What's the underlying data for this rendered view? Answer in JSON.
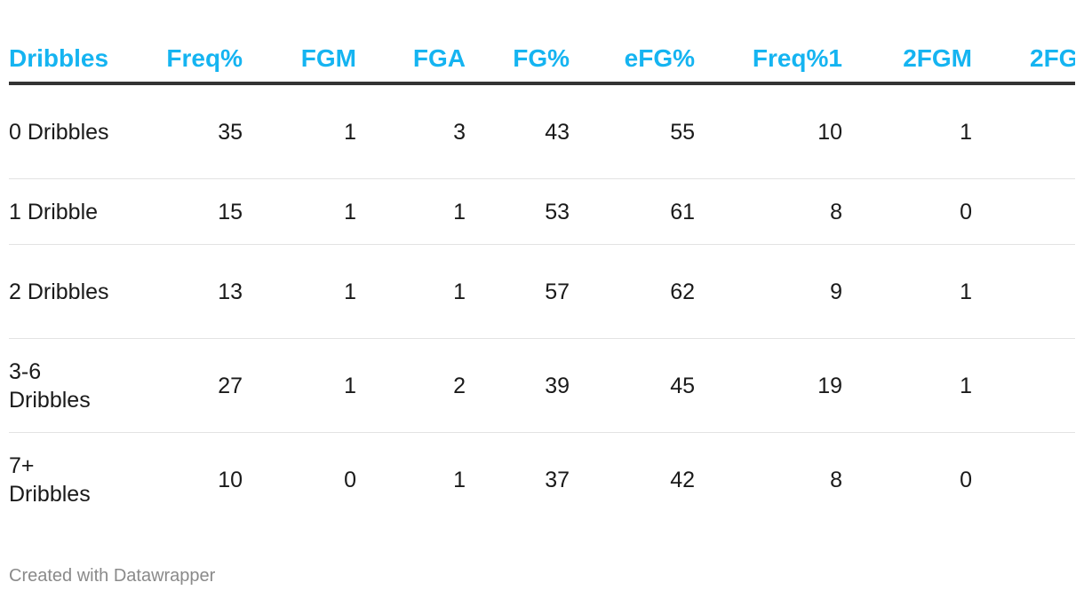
{
  "chart_data": {
    "type": "table",
    "columns": [
      "Dribbles",
      "Freq%",
      "FGM",
      "FGA",
      "FG%",
      "eFG%",
      "Freq%1",
      "2FGM",
      "2FG"
    ],
    "rows": [
      {
        "label": "0 Dribbles",
        "values": [
          "35",
          "1",
          "3",
          "43",
          "55",
          "10",
          "1",
          ""
        ]
      },
      {
        "label": "1 Dribble",
        "values": [
          "15",
          "1",
          "1",
          "53",
          "61",
          "8",
          "0",
          ""
        ]
      },
      {
        "label": "2 Dribbles",
        "values": [
          "13",
          "1",
          "1",
          "57",
          "62",
          "9",
          "1",
          ""
        ]
      },
      {
        "label": "3-6 Dribbles",
        "values": [
          "27",
          "1",
          "2",
          "39",
          "45",
          "19",
          "1",
          ""
        ]
      },
      {
        "label": "7+ Dribbles",
        "values": [
          "10",
          "0",
          "1",
          "37",
          "42",
          "8",
          "0",
          ""
        ]
      }
    ],
    "header_color": "#15b4f1",
    "header_rule_color": "#333333"
  },
  "footer": {
    "credit": "Created with Datawrapper"
  }
}
